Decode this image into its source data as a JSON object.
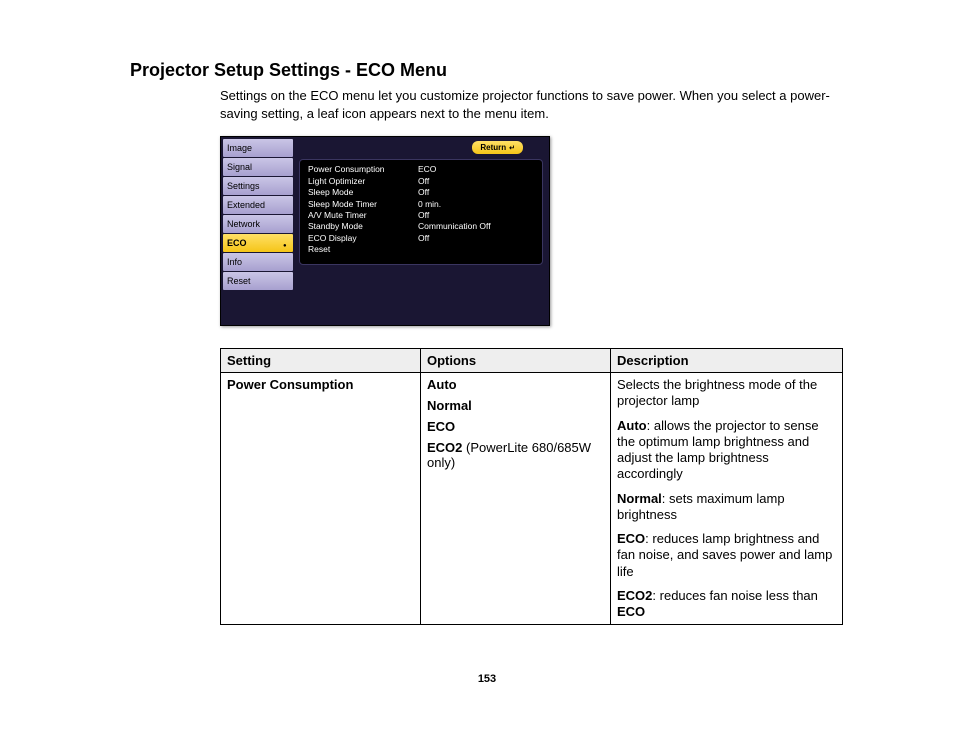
{
  "title": "Projector Setup Settings - ECO Menu",
  "intro": "Settings on the ECO menu let you customize projector functions to save power. When you select a power-saving setting, a leaf icon appears next to the menu item.",
  "osd": {
    "sidebar": [
      "Image",
      "Signal",
      "Settings",
      "Extended",
      "Network",
      "ECO",
      "Info",
      "Reset"
    ],
    "selected_index": 5,
    "return_label": "Return",
    "rows": [
      {
        "k": "Power Consumption",
        "v": "ECO"
      },
      {
        "k": "Light Optimizer",
        "v": "Off"
      },
      {
        "k": "Sleep Mode",
        "v": "Off"
      },
      {
        "k": "Sleep Mode Timer",
        "v": "  0 min."
      },
      {
        "k": "A/V Mute Timer",
        "v": "Off"
      },
      {
        "k": "Standby Mode",
        "v": "Communication Off"
      },
      {
        "k": "ECO Display",
        "v": "Off"
      },
      {
        "k": "Reset",
        "v": ""
      }
    ]
  },
  "table": {
    "headers": {
      "setting": "Setting",
      "options": "Options",
      "description": "Description"
    },
    "row": {
      "setting": "Power Consumption",
      "options": {
        "auto": "Auto",
        "normal": "Normal",
        "eco": "ECO",
        "eco2_bold": "ECO2",
        "eco2_rest": " (PowerLite 680/685W only)"
      },
      "desc": {
        "p1": "Selects the brightness mode of the projector lamp",
        "p2_b": "Auto",
        "p2_r": ": allows the projector to sense the optimum lamp brightness and adjust the lamp brightness accordingly",
        "p3_b": "Normal",
        "p3_r": ": sets maximum lamp brightness",
        "p4_b": "ECO",
        "p4_r": ": reduces lamp brightness and fan noise, and saves power and lamp life",
        "p5_b": "ECO2",
        "p5_m": ": reduces fan noise less than ",
        "p5_b2": "ECO"
      }
    }
  },
  "page_number": "153",
  "colors": {
    "sidebar_item": "#b7b0d8",
    "sidebar_selected": "#f5c518",
    "osd_bg": "#1a1633",
    "panel_bg": "#000000",
    "table_header_bg": "#eeeeee"
  }
}
